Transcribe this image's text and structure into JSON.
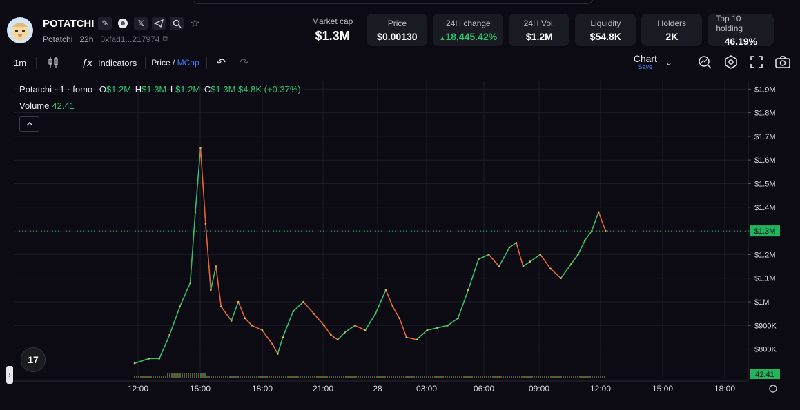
{
  "token": {
    "name": "POTATCHI",
    "subtitle": "Potatchi",
    "age": "22h",
    "address": "0xfad1...217974"
  },
  "stats": [
    {
      "label": "Market cap",
      "value": "$1.3M"
    },
    {
      "label": "Price",
      "value": "$0.00130"
    },
    {
      "label": "24H change",
      "value": "18,445.42%"
    },
    {
      "label": "24H Vol.",
      "value": "$1.2M"
    },
    {
      "label": "Liquidity",
      "value": "$54.8K"
    },
    {
      "label": "Holders",
      "value": "2K"
    },
    {
      "label": "Top 10 holding",
      "value": "46.19%"
    }
  ],
  "toolbar": {
    "interval": "1m",
    "indicators": "Indicators",
    "price": "Price",
    "slash": "/",
    "mcap": "MCap",
    "chart": "Chart",
    "save": "Save"
  },
  "legend": {
    "symbol": "Potatchi · 1 · fomo",
    "o_label": "O",
    "o": "$1.2M",
    "h_label": "H",
    "h": "$1.3M",
    "l_label": "L",
    "l": "$1.2M",
    "c_label": "C",
    "c": "$1.3M",
    "change": "$4.8K (+0.37%)",
    "volume_label": "Volume",
    "volume": "42.41"
  },
  "colors": {
    "up": "#2ec16a",
    "down": "#e8633a",
    "bg": "#0c0b14",
    "grid": "#1d1c26"
  },
  "chart_data": {
    "type": "line",
    "xlabel": "",
    "ylabel": "",
    "y_unit": "market cap (USD)",
    "x_ticks": [
      "12:00",
      "15:00",
      "18:00",
      "21:00",
      "28",
      "03:00",
      "06:00",
      "09:00",
      "12:00",
      "15:00",
      "18:00"
    ],
    "y_ticks": [
      "$800K",
      "$900K",
      "$1M",
      "$1.1M",
      "$1.2M",
      "$1.3M",
      "$1.4M",
      "$1.5M",
      "$1.6M",
      "$1.7M",
      "$1.8M",
      "$1.9M"
    ],
    "ylim": [
      0.74,
      1.92
    ],
    "last_price_label": "$1.3M",
    "last_price": 1.3,
    "volume_label": "42.41",
    "grid": true,
    "series": [
      {
        "x": [
          "11:48",
          "12:30",
          "13:00",
          "13:30",
          "14:00",
          "14:30",
          "14:45",
          "15:00",
          "15:15",
          "15:30",
          "15:45",
          "16:00",
          "16:30",
          "16:50",
          "17:10",
          "17:30",
          "18:00",
          "18:30",
          "18:45",
          "19:00",
          "19:30",
          "20:00",
          "20:30",
          "21:00",
          "21:20",
          "21:40",
          "22:00",
          "22:30",
          "23:00",
          "23:30",
          "00:00",
          "00:20",
          "00:40",
          "01:00",
          "01:30",
          "02:00",
          "02:30",
          "03:00",
          "03:30",
          "04:00",
          "04:30",
          "05:00",
          "05:30",
          "06:00",
          "06:20",
          "06:40",
          "07:00",
          "07:30",
          "08:00",
          "08:30",
          "09:00",
          "09:20",
          "09:40",
          "10:00",
          "10:20",
          "10:40"
        ],
        "y": [
          0.74,
          0.76,
          0.76,
          0.86,
          0.98,
          1.08,
          1.38,
          1.65,
          1.33,
          1.05,
          1.15,
          0.98,
          0.92,
          1.0,
          0.93,
          0.9,
          0.88,
          0.82,
          0.78,
          0.85,
          0.96,
          1.0,
          0.95,
          0.9,
          0.86,
          0.84,
          0.87,
          0.9,
          0.88,
          0.95,
          1.05,
          0.98,
          0.93,
          0.85,
          0.84,
          0.88,
          0.89,
          0.9,
          0.93,
          1.05,
          1.18,
          1.2,
          1.15,
          1.23,
          1.25,
          1.15,
          1.17,
          1.2,
          1.14,
          1.1,
          1.16,
          1.2,
          1.26,
          1.3,
          1.38,
          1.3
        ]
      }
    ]
  }
}
